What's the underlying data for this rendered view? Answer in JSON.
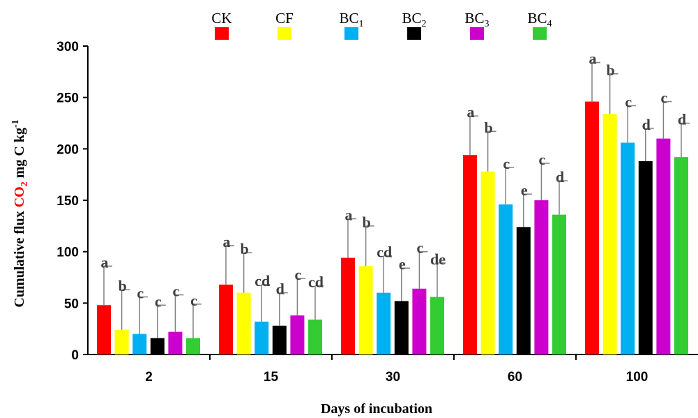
{
  "chart_data": {
    "type": "bar",
    "title": "",
    "xlabel": "Days of incubation",
    "ylabel": {
      "parts": [
        {
          "key": "pre",
          "text": "Cumulative  flux "
        },
        {
          "key": "co",
          "text": "CO"
        },
        {
          "key": "co_sub",
          "text": "2"
        },
        {
          "key": "post",
          "text": " mg C kg"
        },
        {
          "key": "post_sup",
          "text": "-1"
        }
      ]
    },
    "ylim": [
      0,
      300
    ],
    "yticks": [
      "0",
      "50",
      "100",
      "150",
      "200",
      "250",
      "300"
    ],
    "ytick_values": [
      0,
      50,
      100,
      150,
      200,
      250,
      300
    ],
    "grid": false,
    "legend_position": "top",
    "categories": [
      "2",
      "15",
      "30",
      "60",
      "100"
    ],
    "series": [
      {
        "name": "CK",
        "name_main": "CK",
        "name_sub": "",
        "color": "#ff0000",
        "values": [
          48,
          68,
          94,
          194,
          246
        ],
        "errors": [
          38,
          38,
          38,
          38,
          38
        ],
        "labels": [
          "a",
          "a",
          "a",
          "a",
          "a"
        ]
      },
      {
        "name": "CF",
        "name_main": "CF",
        "name_sub": "",
        "color": "#ffff00",
        "values": [
          24,
          60,
          86,
          178,
          234
        ],
        "errors": [
          39,
          39,
          39,
          39,
          39
        ],
        "labels": [
          "b",
          "b",
          "b",
          "b",
          "b"
        ]
      },
      {
        "name": "BC1",
        "name_main": "BC",
        "name_sub": "1",
        "color": "#00b0f0",
        "values": [
          20,
          32,
          60,
          146,
          206
        ],
        "errors": [
          36,
          36,
          36,
          36,
          36
        ],
        "labels": [
          "c",
          "cd",
          "cd",
          "c",
          "c"
        ]
      },
      {
        "name": "BC2",
        "name_main": "BC",
        "name_sub": "2",
        "color": "#000000",
        "values": [
          16,
          28,
          52,
          124,
          188
        ],
        "errors": [
          32,
          32,
          32,
          32,
          32
        ],
        "labels": [
          "c",
          "d",
          "e",
          "e",
          "d"
        ]
      },
      {
        "name": "BC3",
        "name_main": "BC",
        "name_sub": "3",
        "color": "#cc00cc",
        "values": [
          22,
          38,
          64,
          150,
          210
        ],
        "errors": [
          36,
          36,
          36,
          36,
          36
        ],
        "labels": [
          "c",
          "c",
          "c",
          "c",
          "c"
        ]
      },
      {
        "name": "BC4",
        "name_main": "BC",
        "name_sub": "4",
        "color": "#33cc33",
        "values": [
          16,
          34,
          56,
          136,
          192
        ],
        "errors": [
          33,
          33,
          33,
          33,
          33
        ],
        "labels": [
          "c",
          "cd",
          "de",
          "d",
          "d"
        ]
      }
    ]
  }
}
